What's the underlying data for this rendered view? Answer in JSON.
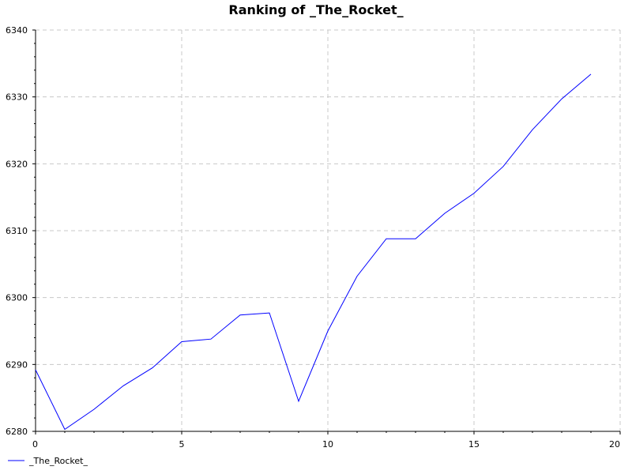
{
  "chart_data": {
    "type": "line",
    "title": "Ranking of _The_Rocket_",
    "xlabel": "",
    "ylabel": "",
    "xlim": [
      0,
      20
    ],
    "ylim": [
      6280,
      6340
    ],
    "x_ticks": [
      "0",
      "5",
      "10",
      "15",
      "20"
    ],
    "y_ticks": [
      "6280",
      "6290",
      "6300",
      "6310",
      "6320",
      "6330",
      "6340"
    ],
    "grid": true,
    "legend_position": "bottom-left",
    "series": [
      {
        "name": "_The_Rocket_",
        "color": "#0000ff",
        "x": [
          0,
          1,
          2,
          3,
          4,
          5,
          6,
          7,
          8,
          9,
          10,
          11,
          12,
          13,
          14,
          15,
          16,
          17,
          18,
          19
        ],
        "values": [
          6289.2,
          6280.3,
          6283.3,
          6286.8,
          6289.5,
          6293.4,
          6293.8,
          6297.4,
          6297.7,
          6284.5,
          6295.0,
          6303.2,
          6308.8,
          6308.8,
          6312.6,
          6315.6,
          6319.6,
          6325.1,
          6329.7,
          6333.4
        ]
      }
    ]
  }
}
